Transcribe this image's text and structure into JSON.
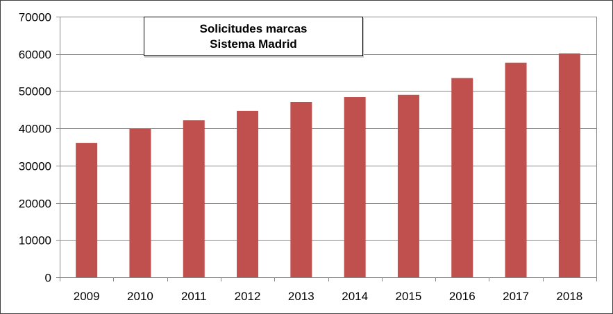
{
  "chart_data": {
    "type": "bar",
    "title_lines": [
      "Solicitudes marcas",
      "Sistema Madrid"
    ],
    "categories": [
      "2009",
      "2010",
      "2011",
      "2012",
      "2013",
      "2014",
      "2015",
      "2016",
      "2017",
      "2018"
    ],
    "values": [
      36100,
      39900,
      42200,
      44700,
      47100,
      48400,
      49000,
      53500,
      57600,
      60100
    ],
    "ylim": [
      0,
      70000
    ],
    "yticks": [
      "0",
      "10000",
      "20000",
      "30000",
      "40000",
      "50000",
      "60000",
      "70000"
    ],
    "xlabel": "",
    "ylabel": "",
    "grid": true,
    "legend": "none",
    "bar_color": "#C0504D",
    "grid_color": "#868686"
  }
}
